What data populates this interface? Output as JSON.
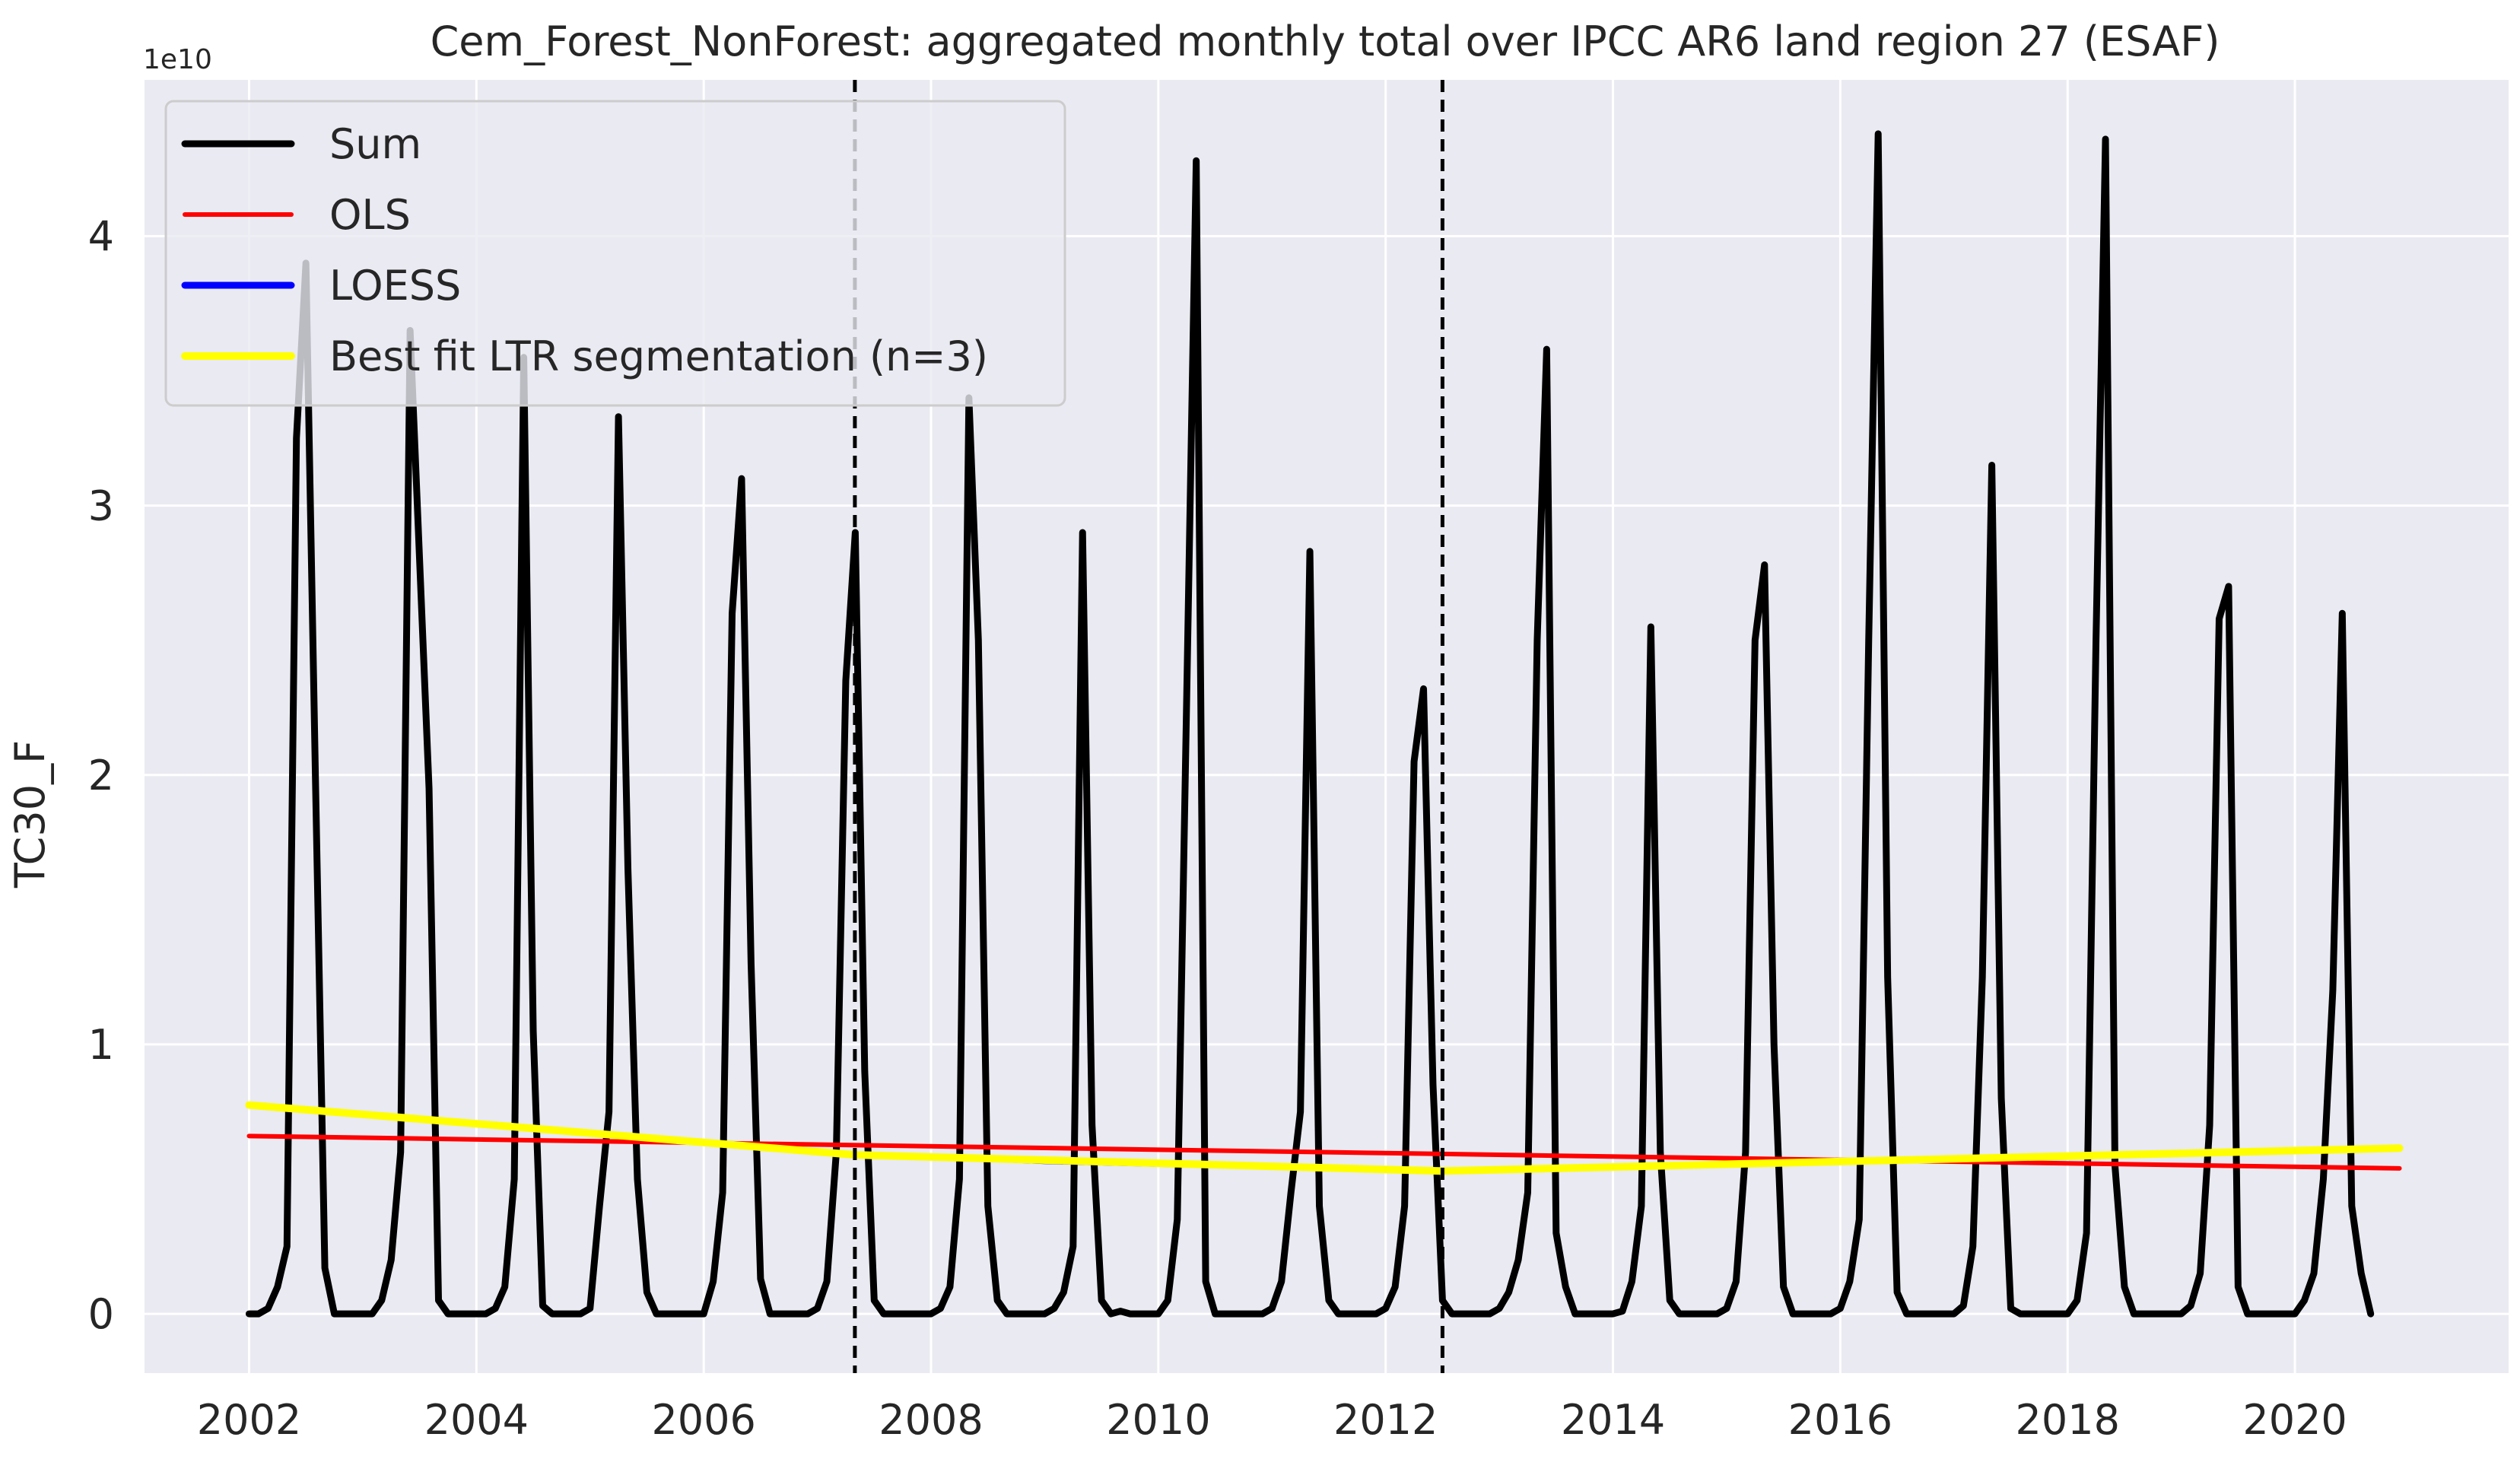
{
  "chart_data": {
    "type": "line",
    "title": "Cem_Forest_NonForest: aggregated monthly total over IPCC AR6 land region 27 (ESAF)",
    "xlabel": "",
    "ylabel": "TC30_F",
    "y_offset_label": "1e10",
    "y_scale": 10000000000,
    "xlim": [
      2001.08,
      2021.88
    ],
    "ylim": [
      -0.22,
      4.58
    ],
    "x_ticks": [
      2002,
      2004,
      2006,
      2008,
      2010,
      2012,
      2014,
      2016,
      2018,
      2020
    ],
    "x_tick_labels": [
      "2002",
      "2004",
      "2006",
      "2008",
      "2010",
      "2012",
      "2014",
      "2016",
      "2018",
      "2020"
    ],
    "y_ticks": [
      0,
      1,
      2,
      3,
      4
    ],
    "y_tick_labels": [
      "0",
      "1",
      "2",
      "3",
      "4"
    ],
    "grid": true,
    "legend_position": "top-left",
    "breakpoints": [
      2007.33,
      2012.5
    ],
    "colors": {
      "background": "#eaeaf2",
      "grid": "#ffffff",
      "sum": "#000000",
      "ols": "#ff0000",
      "loess": "#0000ff",
      "ltr": "#ffff00",
      "breakpoint": "#000000"
    },
    "legend": [
      {
        "label": "Sum",
        "color": "#000000",
        "key": "sum"
      },
      {
        "label": "OLS",
        "color": "#ff0000",
        "key": "ols"
      },
      {
        "label": "LOESS",
        "color": "#0000ff",
        "key": "loess"
      },
      {
        "label": "Best fit LTR segmentation (n=3)",
        "color": "#ffff00",
        "key": "ltr"
      }
    ],
    "series": [
      {
        "name": "Sum",
        "key": "sum",
        "start_year": 2002,
        "values": [
          0.0,
          0.0,
          0.02,
          0.1,
          0.25,
          3.25,
          3.9,
          2.0,
          0.17,
          0.0,
          0.0,
          0.0,
          0.0,
          0.0,
          0.05,
          0.2,
          0.6,
          3.65,
          2.8,
          1.95,
          0.05,
          0.0,
          0.0,
          0.0,
          0.0,
          0.0,
          0.02,
          0.1,
          0.5,
          3.55,
          1.05,
          0.03,
          0.0,
          0.0,
          0.0,
          0.0,
          0.02,
          0.4,
          0.75,
          3.33,
          1.65,
          0.5,
          0.08,
          0.0,
          0.0,
          0.0,
          0.0,
          0.0,
          0.0,
          0.12,
          0.45,
          2.6,
          3.1,
          1.3,
          0.13,
          0.0,
          0.0,
          0.0,
          0.0,
          0.0,
          0.02,
          0.12,
          0.6,
          2.35,
          2.9,
          0.9,
          0.05,
          0.0,
          0.0,
          0.0,
          0.0,
          0.0,
          0.0,
          0.02,
          0.1,
          0.5,
          3.4,
          2.5,
          0.4,
          0.05,
          0.0,
          0.0,
          0.0,
          0.0,
          0.0,
          0.02,
          0.08,
          0.25,
          2.9,
          0.7,
          0.05,
          0.0,
          0.01,
          0.0,
          0.0,
          0.0,
          0.0,
          0.05,
          0.35,
          2.3,
          4.28,
          0.12,
          0.0,
          0.0,
          0.0,
          0.0,
          0.0,
          0.0,
          0.02,
          0.12,
          0.45,
          0.75,
          2.83,
          0.4,
          0.05,
          0.0,
          0.0,
          0.0,
          0.0,
          0.0,
          0.02,
          0.1,
          0.4,
          2.05,
          2.32,
          0.85,
          0.05,
          0.0,
          0.0,
          0.0,
          0.0,
          0.0,
          0.02,
          0.08,
          0.2,
          0.45,
          2.5,
          3.58,
          0.3,
          0.1,
          0.0,
          0.0,
          0.0,
          0.0,
          0.0,
          0.01,
          0.12,
          0.4,
          2.55,
          0.6,
          0.05,
          0.0,
          0.0,
          0.0,
          0.0,
          0.0,
          0.02,
          0.12,
          0.6,
          2.5,
          2.78,
          1.0,
          0.1,
          0.0,
          0.0,
          0.0,
          0.0,
          0.0,
          0.02,
          0.12,
          0.35,
          2.5,
          4.38,
          1.25,
          0.08,
          0.0,
          0.0,
          0.0,
          0.0,
          0.0,
          0.0,
          0.03,
          0.25,
          1.25,
          3.15,
          0.8,
          0.02,
          0.0,
          0.0,
          0.0,
          0.0,
          0.0,
          0.0,
          0.05,
          0.3,
          2.5,
          4.36,
          0.55,
          0.1,
          0.0,
          0.0,
          0.0,
          0.0,
          0.0,
          0.0,
          0.03,
          0.15,
          0.7,
          2.58,
          2.7,
          0.1,
          0.0,
          0.0,
          0.0,
          0.0,
          0.0,
          0.0,
          0.05,
          0.15,
          0.5,
          1.2,
          2.6,
          0.4,
          0.15,
          0.0
        ]
      },
      {
        "name": "OLS",
        "key": "ols",
        "x": [
          2002.0,
          2020.92
        ],
        "values": [
          0.66,
          0.54
        ]
      },
      {
        "name": "LOESS",
        "key": "loess",
        "x": [
          2002.0,
          2004.0,
          2006.0,
          2007.33,
          2009.0,
          2011.0,
          2012.5,
          2014.0,
          2016.0,
          2018.0,
          2020.92
        ],
        "values": [
          0.78,
          0.71,
          0.64,
          0.59,
          0.56,
          0.54,
          0.535,
          0.55,
          0.57,
          0.59,
          0.61
        ]
      },
      {
        "name": "Best fit LTR segmentation (n=3)",
        "key": "ltr",
        "x": [
          2002.0,
          2007.33,
          2012.5,
          2020.92
        ],
        "values": [
          0.775,
          0.59,
          0.53,
          0.615
        ]
      }
    ]
  }
}
